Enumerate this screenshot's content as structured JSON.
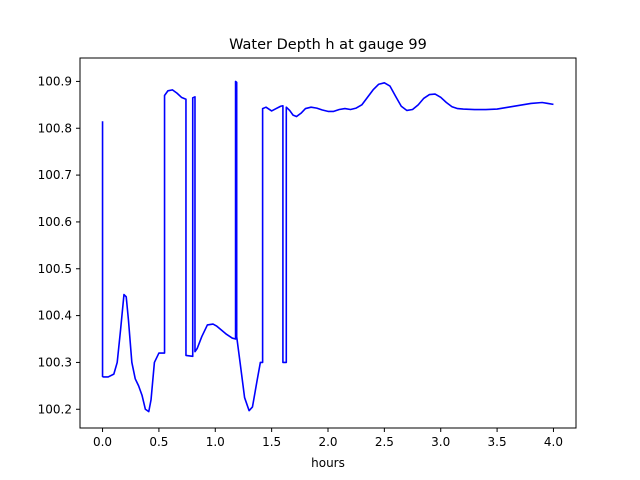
{
  "chart_data": {
    "type": "line",
    "title": "Water Depth h at gauge 99",
    "xlabel": "hours",
    "ylabel": "",
    "xlim": [
      -0.2,
      4.2
    ],
    "ylim": [
      100.16,
      100.95
    ],
    "x_ticks": [
      0.0,
      0.5,
      1.0,
      1.5,
      2.0,
      2.5,
      3.0,
      3.5,
      4.0
    ],
    "x_tick_labels": [
      "0.0",
      "0.5",
      "1.0",
      "1.5",
      "2.0",
      "2.5",
      "3.0",
      "3.5",
      "4.0"
    ],
    "y_ticks": [
      100.2,
      100.3,
      100.4,
      100.5,
      100.6,
      100.7,
      100.8,
      100.9
    ],
    "y_tick_labels": [
      "100.2",
      "100.3",
      "100.4",
      "100.5",
      "100.6",
      "100.7",
      "100.8",
      "100.9"
    ],
    "grid": false,
    "series": [
      {
        "color": "#0000ff",
        "x": [
          0.0,
          0.0,
          0.01,
          0.05,
          0.1,
          0.13,
          0.16,
          0.19,
          0.21,
          0.23,
          0.26,
          0.29,
          0.32,
          0.35,
          0.38,
          0.41,
          0.43,
          0.46,
          0.5,
          0.55,
          0.55,
          0.58,
          0.62,
          0.66,
          0.7,
          0.74,
          0.74,
          0.8,
          0.8,
          0.82,
          0.82,
          0.84,
          0.88,
          0.93,
          0.98,
          1.01,
          1.05,
          1.1,
          1.15,
          1.18,
          1.18,
          1.19,
          1.19,
          1.22,
          1.26,
          1.3,
          1.33,
          1.37,
          1.4,
          1.42,
          1.42,
          1.45,
          1.5,
          1.54,
          1.58,
          1.6,
          1.6,
          1.63,
          1.63,
          1.66,
          1.69,
          1.72,
          1.76,
          1.8,
          1.85,
          1.9,
          1.95,
          2.0,
          2.05,
          2.1,
          2.15,
          2.2,
          2.25,
          2.3,
          2.35,
          2.4,
          2.45,
          2.5,
          2.55,
          2.6,
          2.65,
          2.7,
          2.75,
          2.8,
          2.85,
          2.9,
          2.95,
          3.0,
          3.05,
          3.1,
          3.15,
          3.2,
          3.3,
          3.4,
          3.5,
          3.6,
          3.7,
          3.8,
          3.9,
          3.95,
          4.0
        ],
        "values": [
          100.815,
          100.27,
          100.269,
          100.269,
          100.275,
          100.3,
          100.37,
          100.445,
          100.44,
          100.39,
          100.3,
          100.265,
          100.25,
          100.23,
          100.2,
          100.195,
          100.22,
          100.3,
          100.32,
          100.32,
          100.87,
          100.88,
          100.882,
          100.875,
          100.866,
          100.862,
          100.315,
          100.313,
          100.865,
          100.867,
          100.323,
          100.33,
          100.355,
          100.38,
          100.382,
          100.378,
          100.37,
          100.36,
          100.352,
          100.35,
          100.9,
          100.898,
          100.355,
          100.3,
          100.225,
          100.197,
          100.205,
          100.26,
          100.3,
          100.3,
          100.842,
          100.845,
          100.837,
          100.842,
          100.847,
          100.848,
          100.3,
          100.3,
          100.845,
          100.838,
          100.828,
          100.825,
          100.832,
          100.842,
          100.845,
          100.843,
          100.839,
          100.836,
          100.836,
          100.84,
          100.842,
          100.84,
          100.843,
          100.85,
          100.866,
          100.882,
          100.894,
          100.897,
          100.89,
          100.868,
          100.847,
          100.838,
          100.84,
          100.85,
          100.864,
          100.872,
          100.873,
          100.866,
          100.855,
          100.846,
          100.842,
          100.841,
          100.84,
          100.84,
          100.841,
          100.845,
          100.849,
          100.853,
          100.855,
          100.853,
          100.851
        ]
      }
    ]
  }
}
